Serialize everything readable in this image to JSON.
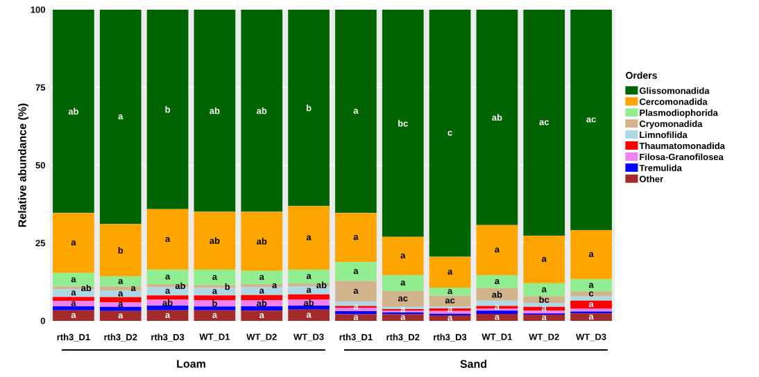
{
  "chart_data": {
    "type": "bar",
    "stacked": true,
    "ylabel": "Relative abundance (%)",
    "legend_title": "Orders",
    "legend": "right",
    "grid": "y",
    "categories": [
      "rth3_D1",
      "rth3_D2",
      "rth3_D3",
      "WT_D1",
      "WT_D2",
      "WT_D3",
      "rth3_D1",
      "rth3_D2",
      "rth3_D3",
      "WT_D1",
      "WT_D2",
      "WT_D3"
    ],
    "ylim": [
      0,
      100
    ],
    "yticks": [
      0,
      25,
      50,
      75,
      100
    ],
    "annotations": [
      "Loam",
      "Sand"
    ],
    "series": [
      {
        "name": "Other",
        "color": "#a52a2a",
        "values": [
          3.4,
          3.2,
          3.4,
          3.4,
          3.3,
          3.6,
          2.1,
          2.1,
          1.8,
          2.2,
          2.0,
          2.4
        ],
        "value_labels": [
          "a",
          "a",
          "a",
          "a",
          "a",
          "a",
          "a",
          "a",
          "a",
          "a",
          "a",
          "a"
        ]
      },
      {
        "name": "Tremulida",
        "color": "#0000ff",
        "values": [
          1.3,
          1.3,
          1.5,
          1.2,
          1.4,
          1.3,
          1.0,
          0.6,
          0.5,
          1.1,
          0.4,
          0.6
        ]
      },
      {
        "name": "Filosa-Granofilosea",
        "color": "#ee82ee",
        "values": [
          1.7,
          1.5,
          1.9,
          2.1,
          2.0,
          1.9,
          1.1,
          0.6,
          0.9,
          0.6,
          0.9,
          0.9
        ],
        "value_labels": [
          "a",
          "a",
          "ab",
          "b",
          "ab",
          "ab",
          null,
          null,
          null,
          null,
          null,
          null
        ]
      },
      {
        "name": "Thaumatomonadida",
        "color": "#ff0000",
        "values": [
          1.3,
          1.6,
          1.4,
          1.5,
          1.6,
          1.7,
          0.6,
          0.5,
          0.8,
          0.9,
          1.2,
          2.6
        ],
        "value_labels": [
          null,
          null,
          null,
          null,
          null,
          null,
          "a",
          "a",
          "a",
          "a",
          "a",
          "a"
        ]
      },
      {
        "name": "Limnofilida",
        "color": "#add8e6",
        "values": [
          2.5,
          2.1,
          2.6,
          2.4,
          2.5,
          2.6,
          1.4,
          0.7,
          0.7,
          1.7,
          1.3,
          1.4
        ],
        "value_labels": [
          "a",
          "a",
          "a",
          "a",
          "a",
          "a",
          null,
          null,
          null,
          null,
          null,
          null
        ]
      },
      {
        "name": "Cryomonadida",
        "color": "#d2b48c",
        "values": [
          0.8,
          1.3,
          1.0,
          0.8,
          1.0,
          0.9,
          6.6,
          5.1,
          3.4,
          4.0,
          2.1,
          1.5
        ],
        "value_labels": [
          "ab",
          "a",
          "ab",
          "b",
          "a",
          "ab",
          "a",
          "ac",
          "ac",
          "ab",
          "bc",
          "c"
        ]
      },
      {
        "name": "Plasmodiophorida",
        "color": "#90ee90",
        "values": [
          4.4,
          3.3,
          4.6,
          5.1,
          4.3,
          4.5,
          6.1,
          5.1,
          2.6,
          4.2,
          4.2,
          4.0
        ],
        "value_labels": [
          "a",
          "a",
          "a",
          "a",
          "a",
          "a",
          "a",
          "a",
          "a",
          "a",
          "a",
          "a"
        ]
      },
      {
        "name": "Cercomonadida",
        "color": "#ffa500",
        "values": [
          19.3,
          16.8,
          19.5,
          18.6,
          19.0,
          20.4,
          15.8,
          12.3,
          9.9,
          16.1,
          15.3,
          15.8
        ],
        "value_labels": [
          "a",
          "b",
          "a",
          "ab",
          "ab",
          "a",
          "a",
          "a",
          "a",
          "a",
          "a",
          "a"
        ]
      },
      {
        "name": "Glissomonadida",
        "color": "#006400",
        "values": [
          65.3,
          68.9,
          64.1,
          64.9,
          64.9,
          63.1,
          65.3,
          73.0,
          79.4,
          69.2,
          72.6,
          70.8
        ],
        "value_labels": [
          "ab",
          "a",
          "b",
          "ab",
          "ab",
          "b",
          "a",
          "bc",
          "c",
          "ab",
          "ac",
          "ac"
        ]
      }
    ]
  }
}
